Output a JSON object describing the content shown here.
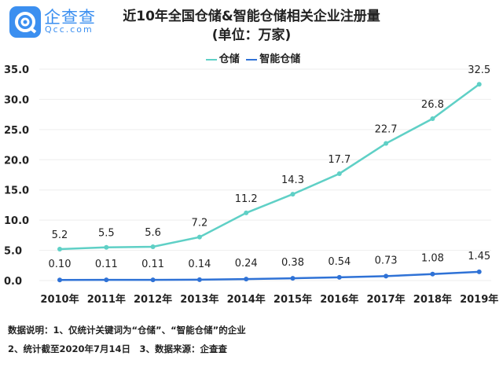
{
  "logo": {
    "name": "企查查",
    "sub": "Qcc.com"
  },
  "chart_data": {
    "type": "line",
    "title": "近10年全国仓储&智能仓储相关企业注册量",
    "subtitle": "(单位：万家)",
    "categories": [
      "2010年",
      "2011年",
      "2012年",
      "2013年",
      "2014年",
      "2015年",
      "2016年",
      "2017年",
      "2018年",
      "2019年"
    ],
    "series": [
      {
        "name": "仓储",
        "color": "#5fd0c6",
        "values": [
          5.2,
          5.5,
          5.6,
          7.2,
          11.2,
          14.3,
          17.7,
          22.7,
          26.8,
          32.5
        ],
        "labels": [
          "5.2",
          "5.5",
          "5.6",
          "7.2",
          "11.2",
          "14.3",
          "17.7",
          "22.7",
          "26.8",
          "32.5"
        ]
      },
      {
        "name": "智能仓储",
        "color": "#2f72d6",
        "values": [
          0.1,
          0.11,
          0.11,
          0.14,
          0.24,
          0.38,
          0.54,
          0.73,
          1.08,
          1.45
        ],
        "labels": [
          "0.10",
          "0.11",
          "0.11",
          "0.14",
          "0.24",
          "0.38",
          "0.54",
          "0.73",
          "1.08",
          "1.45"
        ]
      }
    ],
    "yticks": [
      "0.0",
      "5.0",
      "10.0",
      "15.0",
      "20.0",
      "25.0",
      "30.0",
      "35.0"
    ],
    "ylim": [
      0,
      35
    ],
    "grid": true,
    "legend": "top-center"
  },
  "notes": [
    "数据说明：1、仅统计关键词为“仓储”、“智能仓储”的企业",
    "2、统计截至2020年7月14日　3、数据来源：企查查"
  ]
}
